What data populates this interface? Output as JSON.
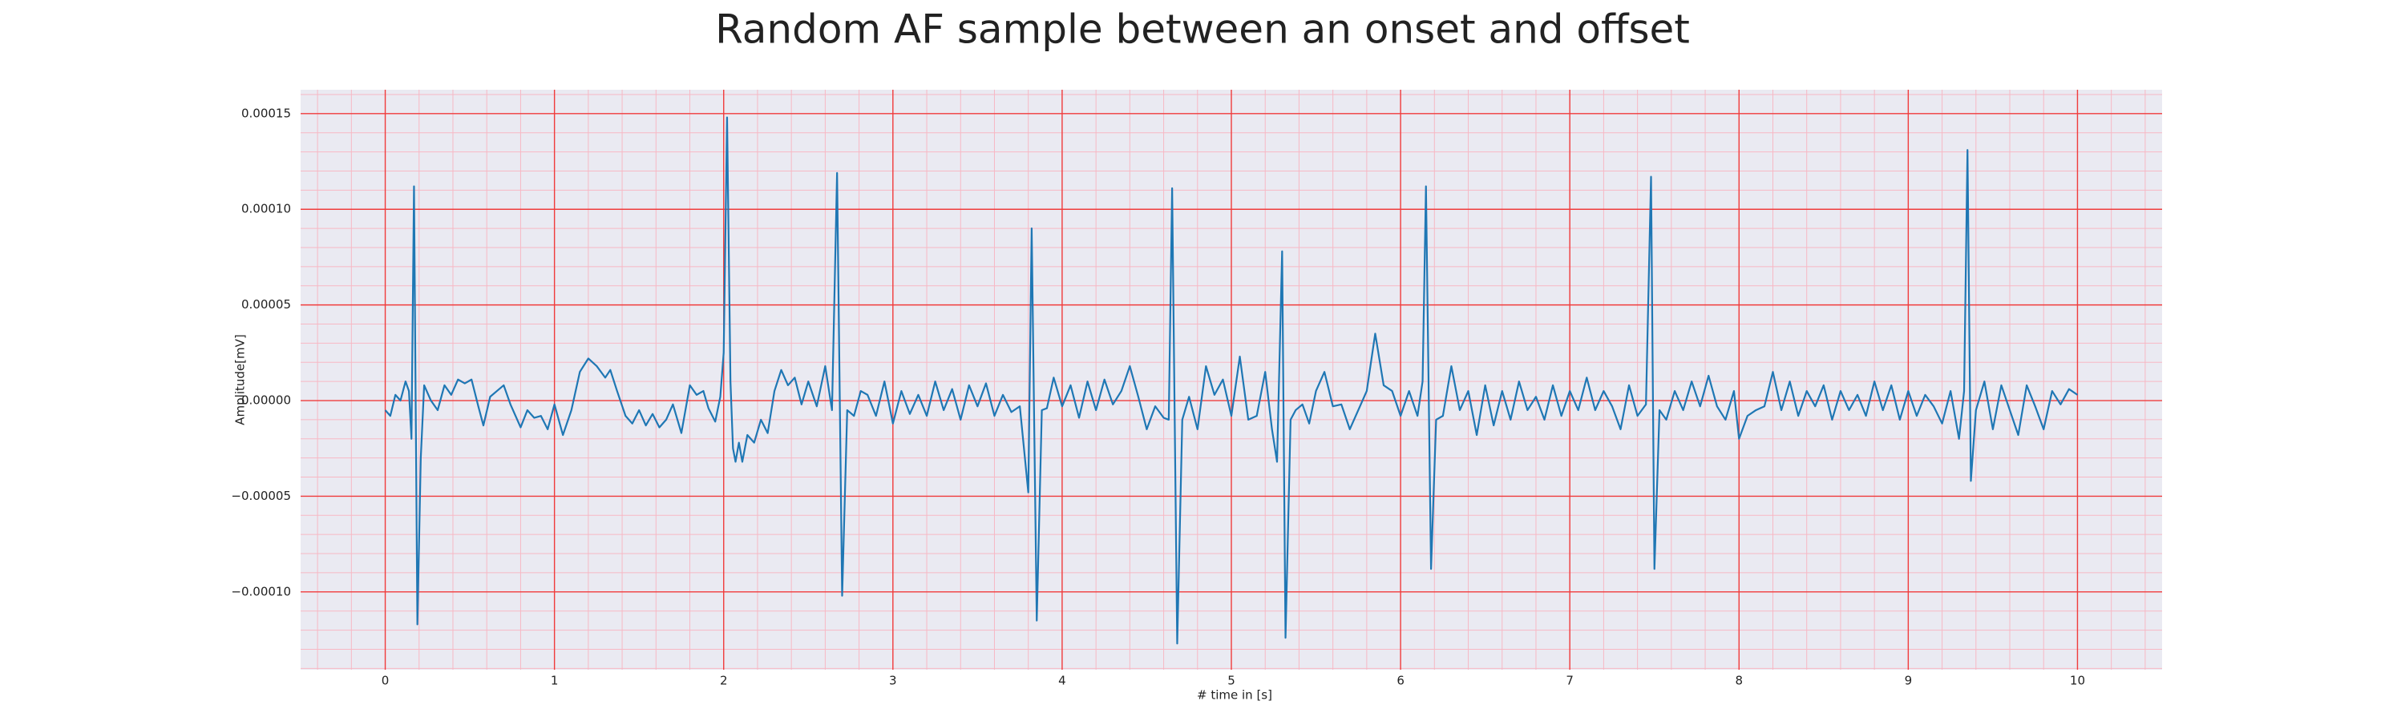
{
  "chart_data": {
    "type": "line",
    "title": "Random AF sample between an onset and offset",
    "xlabel": "# time in [s]",
    "ylabel": "Amplitude[mV]",
    "xlim": [
      -0.5,
      10.5
    ],
    "ylim": [
      -0.0001407,
      0.0001625
    ],
    "xticks": [
      0,
      1,
      2,
      3,
      4,
      5,
      6,
      7,
      8,
      9,
      10
    ],
    "yticks": [
      {
        "value": -0.0001,
        "label": "−0.00010"
      },
      {
        "value": -5e-05,
        "label": "−0.00005"
      },
      {
        "value": 0,
        "label": "0.00000"
      },
      {
        "value": 5e-05,
        "label": "0.00005"
      },
      {
        "value": 0.0001,
        "label": "0.00010"
      },
      {
        "value": 0.00015,
        "label": "0.00015"
      }
    ],
    "grid": true,
    "minor_grid": true,
    "background": "#eaeaf2",
    "grid_color": "#f03c3c",
    "minor_grid_color": "#f7b8c4",
    "series": [
      {
        "color": "#1f77b4",
        "x": [
          0.0,
          0.03,
          0.06,
          0.09,
          0.12,
          0.14,
          0.155,
          0.17,
          0.19,
          0.21,
          0.23,
          0.27,
          0.31,
          0.35,
          0.39,
          0.43,
          0.47,
          0.51,
          0.55,
          0.58,
          0.62,
          0.66,
          0.7,
          0.74,
          0.8,
          0.84,
          0.88,
          0.92,
          0.96,
          1.0,
          1.05,
          1.1,
          1.15,
          1.2,
          1.25,
          1.3,
          1.33,
          1.37,
          1.42,
          1.46,
          1.5,
          1.54,
          1.58,
          1.62,
          1.66,
          1.7,
          1.75,
          1.8,
          1.84,
          1.88,
          1.91,
          1.95,
          1.98,
          2.0,
          2.02,
          2.04,
          2.055,
          2.07,
          2.09,
          2.11,
          2.14,
          2.18,
          2.22,
          2.26,
          2.3,
          2.34,
          2.38,
          2.42,
          2.46,
          2.5,
          2.55,
          2.6,
          2.64,
          2.67,
          2.7,
          2.73,
          2.77,
          2.81,
          2.85,
          2.9,
          2.95,
          3.0,
          3.05,
          3.1,
          3.15,
          3.2,
          3.25,
          3.3,
          3.35,
          3.4,
          3.45,
          3.5,
          3.55,
          3.6,
          3.65,
          3.7,
          3.75,
          3.8,
          3.82,
          3.85,
          3.88,
          3.91,
          3.95,
          4.0,
          4.05,
          4.1,
          4.15,
          4.2,
          4.25,
          4.3,
          4.35,
          4.4,
          4.45,
          4.5,
          4.55,
          4.6,
          4.63,
          4.65,
          4.68,
          4.71,
          4.75,
          4.8,
          4.85,
          4.9,
          4.95,
          5.0,
          5.05,
          5.1,
          5.15,
          5.2,
          5.24,
          5.27,
          5.3,
          5.32,
          5.35,
          5.38,
          5.42,
          5.46,
          5.5,
          5.55,
          5.6,
          5.65,
          5.7,
          5.75,
          5.8,
          5.85,
          5.9,
          5.95,
          6.0,
          6.05,
          6.1,
          6.13,
          6.15,
          6.18,
          6.21,
          6.25,
          6.3,
          6.35,
          6.4,
          6.45,
          6.5,
          6.55,
          6.6,
          6.65,
          6.7,
          6.75,
          6.8,
          6.85,
          6.9,
          6.95,
          7.0,
          7.05,
          7.1,
          7.15,
          7.2,
          7.25,
          7.3,
          7.35,
          7.4,
          7.45,
          7.48,
          7.5,
          7.53,
          7.57,
          7.62,
          7.67,
          7.72,
          7.77,
          7.82,
          7.87,
          7.92,
          7.97,
          8.0,
          8.05,
          8.1,
          8.15,
          8.2,
          8.25,
          8.3,
          8.35,
          8.4,
          8.45,
          8.5,
          8.55,
          8.6,
          8.65,
          8.7,
          8.75,
          8.8,
          8.85,
          8.9,
          8.95,
          9.0,
          9.05,
          9.1,
          9.15,
          9.2,
          9.25,
          9.3,
          9.33,
          9.35,
          9.37,
          9.4,
          9.45,
          9.5,
          9.55,
          9.6,
          9.65,
          9.7,
          9.75,
          9.8,
          9.85,
          9.9,
          9.95,
          10.0
        ],
        "values": [
          -5e-06,
          -8e-06,
          3e-06,
          0.0,
          1e-05,
          5e-06,
          -2e-05,
          0.000112,
          -0.000117,
          -3e-05,
          8e-06,
          0.0,
          -5e-06,
          8e-06,
          3e-06,
          1.1e-05,
          9e-06,
          1.1e-05,
          -3e-06,
          -1.3e-05,
          2e-06,
          5e-06,
          8e-06,
          -2e-06,
          -1.4e-05,
          -5e-06,
          -9e-06,
          -8e-06,
          -1.5e-05,
          -2e-06,
          -1.8e-05,
          -5e-06,
          1.5e-05,
          2.2e-05,
          1.8e-05,
          1.2e-05,
          1.6e-05,
          5e-06,
          -8e-06,
          -1.2e-05,
          -5e-06,
          -1.3e-05,
          -7e-06,
          -1.4e-05,
          -1e-05,
          -2e-06,
          -1.7e-05,
          8e-06,
          3e-06,
          5e-06,
          -4e-06,
          -1.1e-05,
          2e-06,
          2.5e-05,
          0.000148,
          1e-05,
          -2.5e-05,
          -3.2e-05,
          -2.2e-05,
          -3.2e-05,
          -1.8e-05,
          -2.2e-05,
          -1e-05,
          -1.7e-05,
          5e-06,
          1.6e-05,
          8e-06,
          1.2e-05,
          -2e-06,
          1e-05,
          -3e-06,
          1.8e-05,
          -5e-06,
          0.000119,
          -0.000102,
          -5e-06,
          -8e-06,
          5e-06,
          3e-06,
          -8e-06,
          1e-05,
          -1.2e-05,
          5e-06,
          -7e-06,
          3e-06,
          -8e-06,
          1e-05,
          -5e-06,
          6e-06,
          -1e-05,
          8e-06,
          -3e-06,
          9e-06,
          -8e-06,
          3e-06,
          -6e-06,
          -3e-06,
          -4.8e-05,
          9e-05,
          -0.000115,
          -5e-06,
          -4e-06,
          1.2e-05,
          -3e-06,
          8e-06,
          -9e-06,
          1e-05,
          -5e-06,
          1.1e-05,
          -2e-06,
          5e-06,
          1.8e-05,
          2e-06,
          -1.5e-05,
          -3e-06,
          -9e-06,
          -1e-05,
          0.000111,
          -0.000127,
          -1e-05,
          2e-06,
          -1.5e-05,
          1.8e-05,
          3e-06,
          1.1e-05,
          -8e-06,
          2.3e-05,
          -1e-05,
          -8e-06,
          1.5e-05,
          -1.5e-05,
          -3.2e-05,
          7.8e-05,
          -0.000124,
          -1e-05,
          -5e-06,
          -2e-06,
          -1.2e-05,
          5e-06,
          1.5e-05,
          -3e-06,
          -2e-06,
          -1.5e-05,
          -5e-06,
          5e-06,
          3.5e-05,
          8e-06,
          5e-06,
          -8e-06,
          5e-06,
          -8e-06,
          1e-05,
          0.000112,
          -8.8e-05,
          -1e-05,
          -8e-06,
          1.8e-05,
          -5e-06,
          5e-06,
          -1.8e-05,
          8e-06,
          -1.3e-05,
          5e-06,
          -1e-05,
          1e-05,
          -5e-06,
          2e-06,
          -1e-05,
          8e-06,
          -8e-06,
          5e-06,
          -5e-06,
          1.2e-05,
          -5e-06,
          5e-06,
          -3e-06,
          -1.5e-05,
          8e-06,
          -8e-06,
          -2e-06,
          0.000117,
          -8.8e-05,
          -5e-06,
          -1e-05,
          5e-06,
          -5e-06,
          1e-05,
          -3e-06,
          1.3e-05,
          -3e-06,
          -1e-05,
          5e-06,
          -2e-05,
          -8e-06,
          -5e-06,
          -3e-06,
          1.5e-05,
          -5e-06,
          1e-05,
          -8e-06,
          5e-06,
          -3e-06,
          8e-06,
          -1e-05,
          5e-06,
          -5e-06,
          3e-06,
          -8e-06,
          1e-05,
          -5e-06,
          8e-06,
          -1e-05,
          5e-06,
          -8e-06,
          3e-06,
          -3e-06,
          -1.2e-05,
          5e-06,
          -2e-05,
          5e-06,
          0.000131,
          -4.2e-05,
          -5e-06,
          1e-05,
          -1.5e-05,
          8e-06,
          -5e-06,
          -1.8e-05,
          8e-06,
          -3e-06,
          -1.5e-05,
          5e-06,
          -2e-06,
          6e-06,
          3e-06
        ]
      }
    ]
  }
}
